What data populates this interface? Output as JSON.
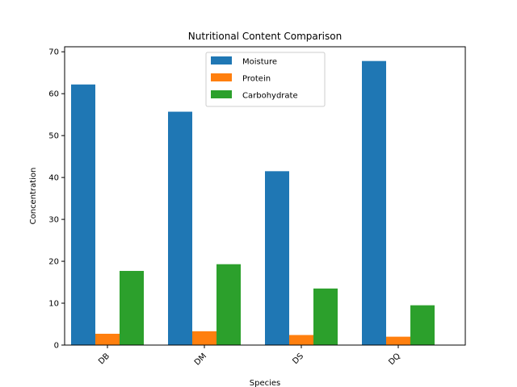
{
  "chart_data": {
    "type": "bar",
    "title": "Nutritional Content Comparison",
    "xlabel": "Species",
    "ylabel": "Concentration",
    "categories": [
      "DB",
      "DM",
      "DS",
      "DQ"
    ],
    "series": [
      {
        "name": "Moisture",
        "color": "#1f77b4",
        "values": [
          62.2,
          55.7,
          41.5,
          67.8
        ]
      },
      {
        "name": "Protein",
        "color": "#ff7f0e",
        "values": [
          2.7,
          3.3,
          2.4,
          2.0
        ]
      },
      {
        "name": "Carbohydrate",
        "color": "#2ca02c",
        "values": [
          17.7,
          19.3,
          13.5,
          9.5
        ]
      }
    ],
    "ylim": [
      0,
      71.2
    ],
    "yticks": [
      0,
      10,
      20,
      30,
      40,
      50,
      60,
      70
    ],
    "xtick_rotation": 45,
    "legend_position": "top-center",
    "grid": false
  }
}
